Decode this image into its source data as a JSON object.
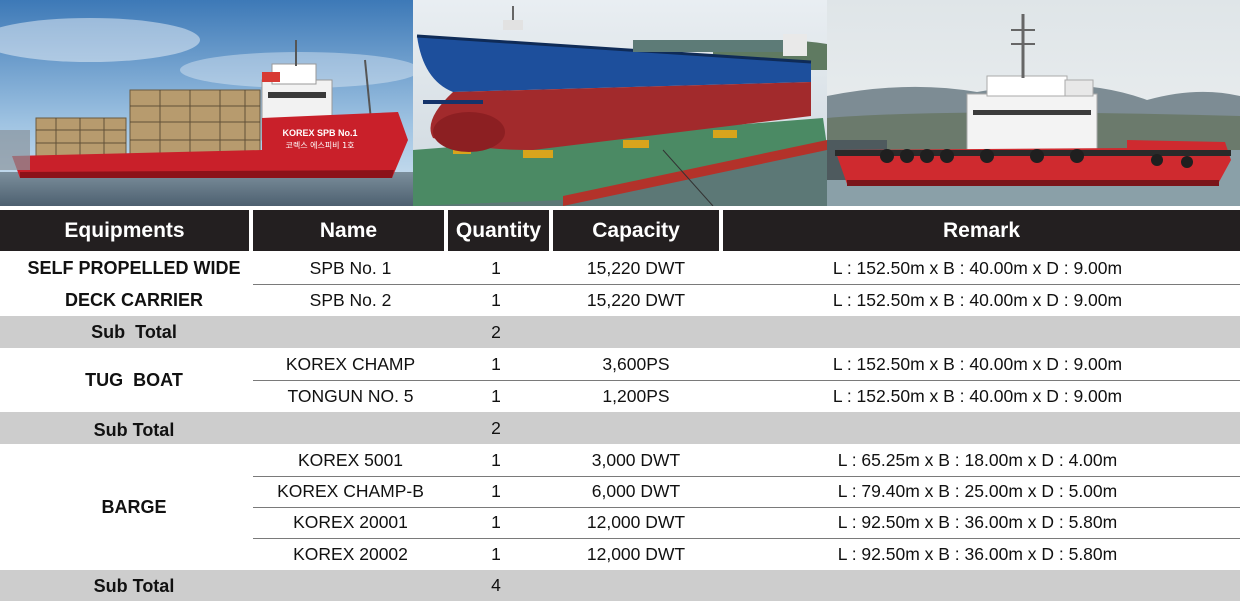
{
  "table": {
    "headers": {
      "equipments": "Equipments",
      "name": "Name",
      "quantity": "Quantity",
      "capacity": "Capacity",
      "remark": "Remark"
    },
    "groups": [
      {
        "category_lines": [
          "SELF PROPELLED WIDE",
          "DECK CARRIER"
        ],
        "rows": [
          {
            "name": "SPB No. 1",
            "quantity": "1",
            "capacity": "15,220 DWT",
            "remark": "L : 152.50m x B : 40.00m x D : 9.00m"
          },
          {
            "name": "SPB No. 2",
            "quantity": "1",
            "capacity": "15,220 DWT",
            "remark": "L : 152.50m x B : 40.00m x D : 9.00m"
          }
        ],
        "subtotal_label": "Sub  Total",
        "subtotal_value": "2"
      },
      {
        "category_lines": [
          "TUG  BOAT"
        ],
        "rows": [
          {
            "name": "KOREX CHAMP",
            "quantity": "1",
            "capacity": "3,600PS",
            "remark": "L : 152.50m x B : 40.00m x D : 9.00m"
          },
          {
            "name": "TONGUN NO. 5",
            "quantity": "1",
            "capacity": "1,200PS",
            "remark": "L : 152.50m x B : 40.00m x D : 9.00m"
          }
        ],
        "subtotal_label": "Sub Total",
        "subtotal_value": "2"
      },
      {
        "category_lines": [
          "BARGE"
        ],
        "rows": [
          {
            "name": "KOREX 5001",
            "quantity": "1",
            "capacity": "3,000 DWT",
            "remark": "L : 65.25m x B : 18.00m x D : 4.00m"
          },
          {
            "name": "KOREX CHAMP-B",
            "quantity": "1",
            "capacity": "6,000 DWT",
            "remark": "L : 79.40m x B : 25.00m x D : 5.00m"
          },
          {
            "name": "KOREX 20001",
            "quantity": "1",
            "capacity": "12,000 DWT",
            "remark": "L : 92.50m x B : 36.00m x D : 5.80m"
          },
          {
            "name": "KOREX 20002",
            "quantity": "1",
            "capacity": "12,000 DWT",
            "remark": "L : 92.50m x B : 36.00m x D : 5.80m"
          }
        ],
        "subtotal_label": "Sub Total",
        "subtotal_value": "4"
      }
    ]
  },
  "photo_text": {
    "ship_name": "KOREX SPB No.1",
    "ship_name_korean": "코렉스 에스피비 1호"
  },
  "colors": {
    "header_bg": "#231f20",
    "subtotal_bg": "#cdcdcd",
    "hull_red": "#c9202a",
    "hull_blue": "#1d4f9c"
  }
}
